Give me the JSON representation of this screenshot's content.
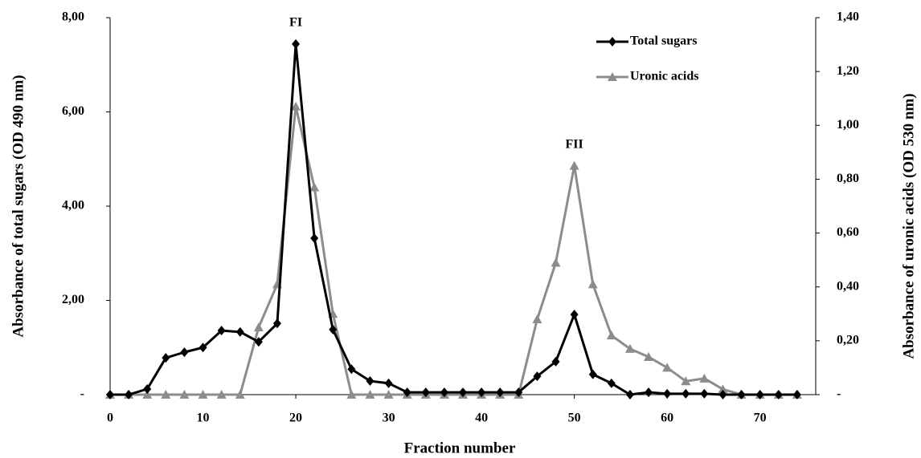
{
  "chart_data": {
    "type": "line",
    "x_label": "Fraction number",
    "y_label": "Absorbance  of total sugars  (OD 490 nm)",
    "y2_label": "Absorbance of uronic acids (OD 530 nm)",
    "annotations": [
      {
        "text": "FI",
        "x": 20
      },
      {
        "text": "FII",
        "x": 50
      }
    ],
    "x": [
      0,
      2,
      4,
      6,
      8,
      10,
      12,
      14,
      16,
      18,
      20,
      22,
      24,
      26,
      28,
      30,
      32,
      34,
      36,
      38,
      40,
      42,
      44,
      46,
      48,
      50,
      52,
      54,
      56,
      58,
      60,
      62,
      64,
      66,
      68,
      70,
      72,
      74
    ],
    "series": [
      {
        "name": "Total sugars",
        "color": "#000000",
        "marker": "diamond",
        "values": [
          0,
          0,
          0.12,
          0.78,
          0.9,
          1.0,
          1.36,
          1.33,
          1.12,
          1.51,
          7.44,
          3.32,
          1.38,
          0.54,
          0.29,
          0.24,
          0.05,
          0.05,
          0.05,
          0.05,
          0.05,
          0.05,
          0.05,
          0.39,
          0.7,
          1.7,
          0.43,
          0.24,
          0,
          0.05,
          0.02,
          0.02,
          0.02,
          0,
          0,
          0,
          0,
          0
        ]
      },
      {
        "name": "Uronic acids",
        "color": "#8c8c8c",
        "marker": "triangle",
        "axis": "y2",
        "values": [
          0,
          0,
          0,
          0,
          0,
          0,
          0,
          0,
          0.25,
          0.41,
          1.07,
          0.77,
          0.3,
          0,
          0,
          0,
          0,
          0,
          0,
          0,
          0,
          0,
          0,
          0.28,
          0.49,
          0.85,
          0.41,
          0.22,
          0.17,
          0.14,
          0.1,
          0.05,
          0.06,
          0.02,
          0,
          0,
          0,
          0
        ]
      }
    ],
    "xlim": [
      0,
      76
    ],
    "xticks": [
      0,
      10,
      20,
      30,
      40,
      50,
      60,
      70
    ],
    "ylim": [
      0,
      8
    ],
    "yticks": [
      {
        "value": 0,
        "label": "-"
      },
      {
        "value": 2,
        "label": "2,00"
      },
      {
        "value": 4,
        "label": "4,00"
      },
      {
        "value": 6,
        "label": "6,00"
      },
      {
        "value": 8,
        "label": "8,00"
      }
    ],
    "y2lim": [
      0,
      1.4
    ],
    "y2ticks": [
      {
        "value": 0,
        "label": "-"
      },
      {
        "value": 0.2,
        "label": "0,20"
      },
      {
        "value": 0.4,
        "label": "0,40"
      },
      {
        "value": 0.6,
        "label": "0,60"
      },
      {
        "value": 0.8,
        "label": "0,80"
      },
      {
        "value": 1,
        "label": "1,00"
      },
      {
        "value": 1.2,
        "label": "1,20"
      },
      {
        "value": 1.4,
        "label": "1,40"
      }
    ],
    "legend": "top-right",
    "grid": false
  }
}
